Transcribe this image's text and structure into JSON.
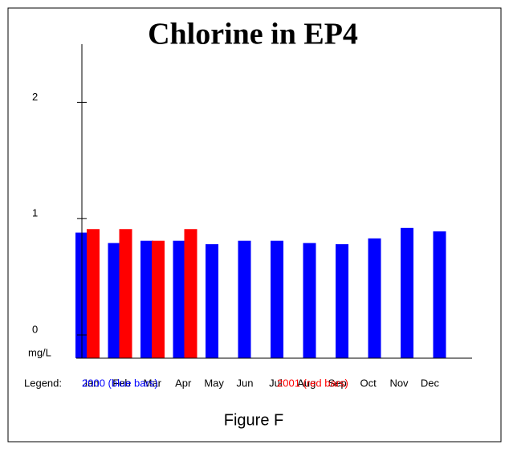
{
  "chart_data": {
    "type": "bar",
    "title": "Chlorine in  EP4",
    "categories": [
      "Jan",
      "Feb",
      "Mar",
      "Apr",
      "May",
      "Jun",
      "Jul",
      "Aug",
      "Sep",
      "Oct",
      "Nov",
      "Dec"
    ],
    "series": [
      {
        "name": "2000 (blue bars)",
        "color": "#0000ff",
        "values": [
          0.88,
          0.79,
          0.81,
          0.81,
          0.78,
          0.81,
          0.81,
          0.79,
          0.78,
          0.83,
          0.92,
          0.89
        ]
      },
      {
        "name": "2001 (red bars)",
        "color": "#ff0000",
        "values": [
          0.91,
          0.91,
          0.81,
          0.91,
          null,
          null,
          null,
          null,
          null,
          null,
          null,
          null
        ]
      }
    ],
    "ylim": [
      -0.2,
      2.5
    ],
    "yticks": [
      0,
      1,
      2
    ],
    "y_label": "mg/L",
    "legend_label": "Legend:",
    "caption": "Figure F"
  }
}
